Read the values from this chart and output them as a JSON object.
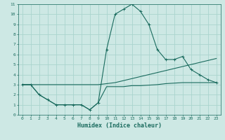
{
  "title": "",
  "xlabel": "Humidex (Indice chaleur)",
  "ylabel": "",
  "background_color": "#cde8e4",
  "grid_color": "#aad4ce",
  "line_color": "#1a6b5e",
  "xlim": [
    -0.5,
    23.5
  ],
  "ylim": [
    0,
    11
  ],
  "xticks": [
    0,
    1,
    2,
    3,
    4,
    5,
    6,
    7,
    8,
    9,
    10,
    11,
    12,
    13,
    14,
    15,
    16,
    17,
    18,
    19,
    20,
    21,
    22,
    23
  ],
  "yticks": [
    0,
    1,
    2,
    3,
    4,
    5,
    6,
    7,
    8,
    9,
    10,
    11
  ],
  "line1_x": [
    0,
    1,
    2,
    3,
    4,
    5,
    6,
    7,
    8,
    9,
    10,
    11,
    12,
    13,
    14,
    15,
    16,
    17,
    18,
    19,
    20,
    21,
    22,
    23
  ],
  "line1_y": [
    3.0,
    3.0,
    3.0,
    3.0,
    3.0,
    3.0,
    3.0,
    3.0,
    3.0,
    3.0,
    3.1,
    3.2,
    3.4,
    3.6,
    3.8,
    4.0,
    4.2,
    4.4,
    4.6,
    4.8,
    5.0,
    5.2,
    5.4,
    5.6
  ],
  "line2_x": [
    0,
    1,
    2,
    3,
    4,
    5,
    6,
    7,
    8,
    9,
    10,
    11,
    12,
    13,
    14,
    15,
    16,
    17,
    18,
    19,
    20,
    21,
    22,
    23
  ],
  "line2_y": [
    3.0,
    3.0,
    2.0,
    1.5,
    1.0,
    1.0,
    1.0,
    1.0,
    0.5,
    1.2,
    6.5,
    10.0,
    10.5,
    11.0,
    10.3,
    9.0,
    6.5,
    5.5,
    5.5,
    5.8,
    4.5,
    4.0,
    3.5,
    3.2
  ],
  "line3_x": [
    0,
    1,
    2,
    3,
    4,
    5,
    6,
    7,
    8,
    9,
    10,
    11,
    12,
    13,
    14,
    15,
    16,
    17,
    18,
    19,
    20,
    21,
    22,
    23
  ],
  "line3_y": [
    3.0,
    3.0,
    2.0,
    1.5,
    1.0,
    1.0,
    1.0,
    1.0,
    0.5,
    1.2,
    2.8,
    2.8,
    2.8,
    2.9,
    2.9,
    2.95,
    3.0,
    3.1,
    3.15,
    3.2,
    3.2,
    3.2,
    3.2,
    3.2
  ]
}
